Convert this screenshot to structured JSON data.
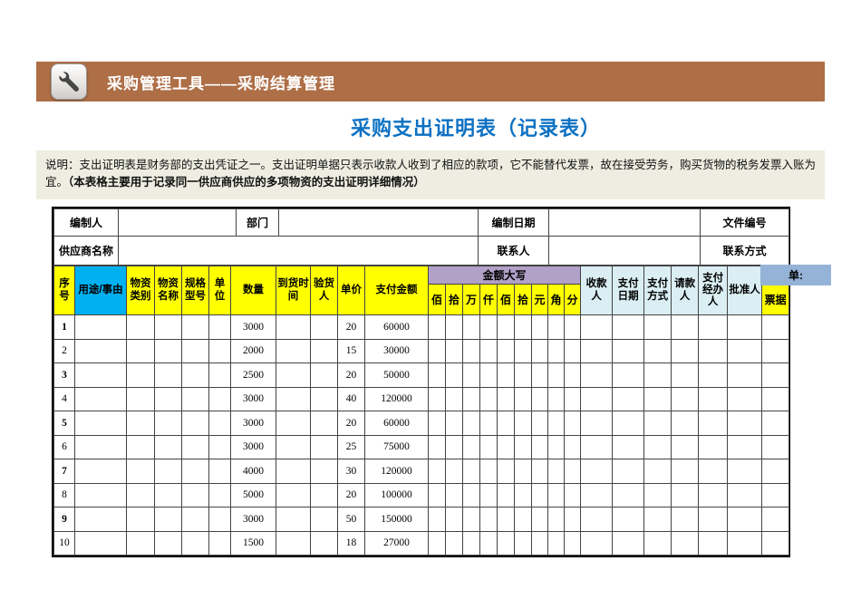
{
  "colors": {
    "banner_brown": "#ae6e46",
    "title_blue": "#0d71c2",
    "note_beige": "#eeede1",
    "header_yellow": "#ffff00",
    "usage_cyan": "#00b0f0",
    "amount_lavender": "#b1a0c7",
    "right_header_blue": "#daeef3",
    "doc_tab_blue": "#95b3d7"
  },
  "top_banner": {
    "title": "采购管理工具——采购结算管理",
    "icon": "wrench-icon"
  },
  "page_title": "采购支出证明表（记录表）",
  "note": {
    "prefix": "说明：支出证明表是财务部的支出凭证之一。支出证明单据只表示收款人收到了相应的款项，它不能替代发票，故在接受劳务，购买货物的税务发票入账为宜。",
    "bold": "（本表格主要用于记录同一供应商供应的多项物资的支出证明详细情况）"
  },
  "info": {
    "maker_label": "编制人",
    "maker_value": "",
    "dept_label": "部门",
    "dept_value": "",
    "date_label": "编制日期",
    "date_value": "",
    "file_label": "文件编号",
    "supplier_label": "供应商名称",
    "supplier_value": "",
    "contact_label": "联系人",
    "contact_value": "",
    "contact_method_label": "联系方式"
  },
  "table": {
    "left_headers": [
      "序号",
      "用途/事由",
      "物资类别",
      "物资名称",
      "规格型号",
      "单位",
      "数量",
      "到货时间",
      "验货人",
      "单价",
      "支付金额"
    ],
    "amount_group_label": "金额大写",
    "amount_digits": [
      "佰",
      "拾",
      "万",
      "仟",
      "佰",
      "拾",
      "元",
      "角",
      "分"
    ],
    "right_headers": [
      "收款人",
      "支付日期",
      "支付方式",
      "请款人",
      "支付经办人",
      "批准人"
    ],
    "doc_tab_label": "单:",
    "receipt_label": "票据",
    "rows": [
      {
        "no": "1",
        "qty": "3000",
        "price": "20",
        "amount": "60000"
      },
      {
        "no": "2",
        "qty": "2000",
        "price": "15",
        "amount": "30000"
      },
      {
        "no": "3",
        "qty": "2500",
        "price": "20",
        "amount": "50000"
      },
      {
        "no": "4",
        "qty": "3000",
        "price": "40",
        "amount": "120000"
      },
      {
        "no": "5",
        "qty": "3000",
        "price": "20",
        "amount": "60000"
      },
      {
        "no": "6",
        "qty": "3000",
        "price": "25",
        "amount": "75000"
      },
      {
        "no": "7",
        "qty": "4000",
        "price": "30",
        "amount": "120000"
      },
      {
        "no": "8",
        "qty": "5000",
        "price": "20",
        "amount": "100000"
      },
      {
        "no": "9",
        "qty": "3000",
        "price": "50",
        "amount": "150000"
      },
      {
        "no": "10",
        "qty": "1500",
        "price": "18",
        "amount": "27000"
      }
    ]
  }
}
